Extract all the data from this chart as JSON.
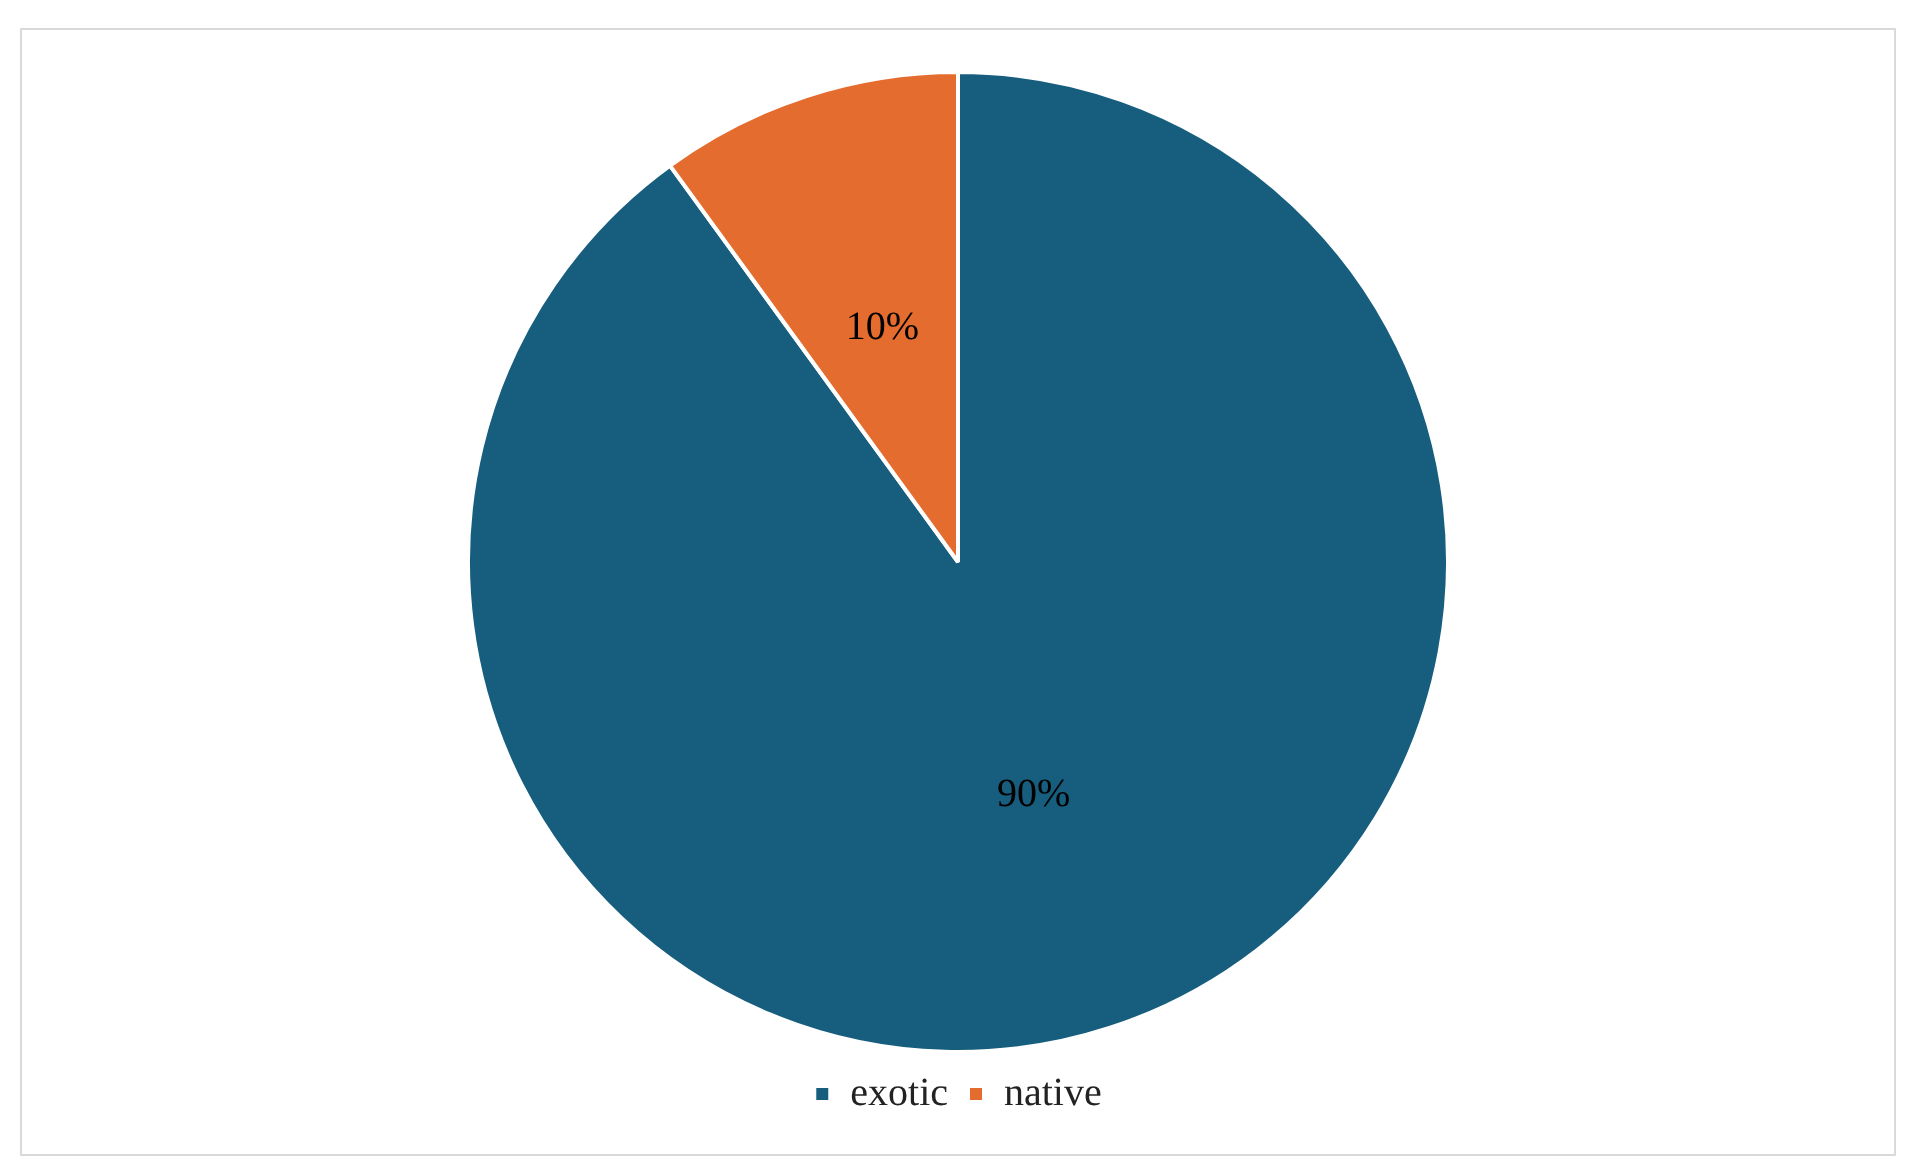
{
  "chart_data": {
    "type": "pie",
    "categories": [
      "exotic",
      "native"
    ],
    "values": [
      90,
      10
    ],
    "colors": [
      "#175e7e",
      "#e46c2e"
    ],
    "value_labels": [
      "90%",
      "10%"
    ],
    "legend": "bottom"
  }
}
